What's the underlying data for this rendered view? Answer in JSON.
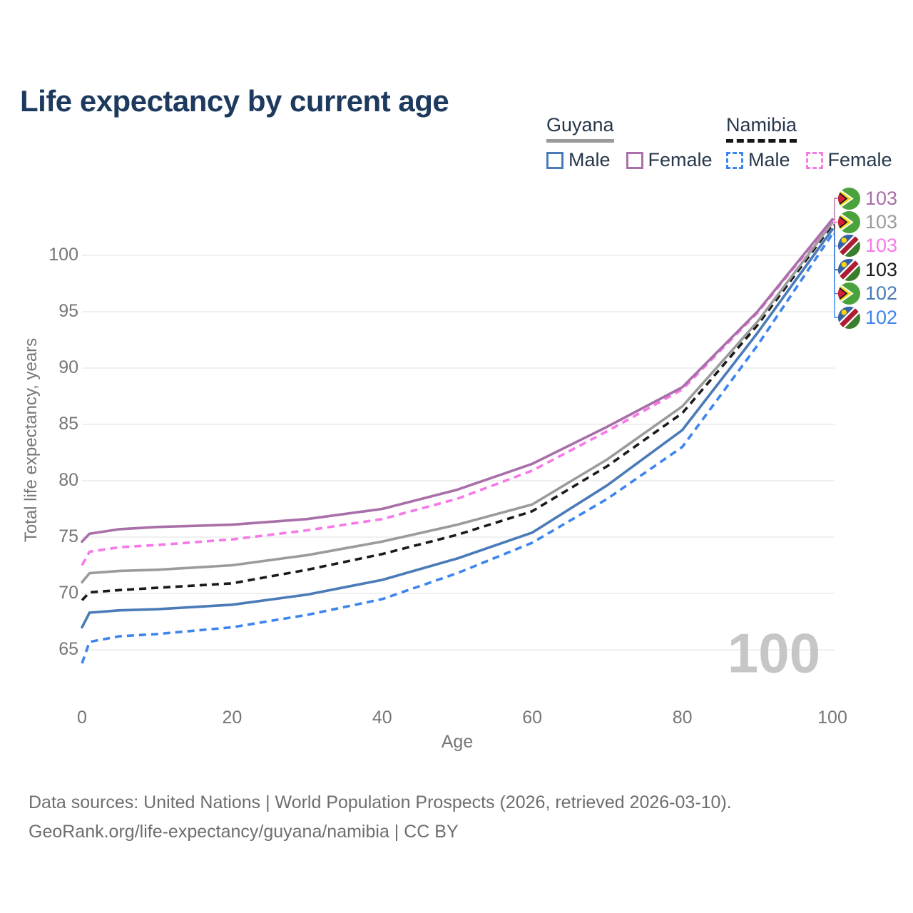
{
  "title": "Life expectancy by current age",
  "legend": {
    "groups": [
      {
        "country": "Guyana",
        "underline": "solid",
        "items": [
          {
            "label": "Male",
            "color": "#4a7bb8",
            "dashed": false
          },
          {
            "label": "Female",
            "color": "#a86fa8",
            "dashed": false
          }
        ]
      },
      {
        "country": "Namibia",
        "underline": "dashed",
        "items": [
          {
            "label": "Male",
            "color": "#3d85ee",
            "dashed": true
          },
          {
            "label": "Female",
            "color": "#f878e8",
            "dashed": true
          }
        ]
      }
    ]
  },
  "watermark": "100",
  "end_labels": [
    {
      "series": "Guyana Female",
      "country": "guyana",
      "value": "103",
      "color": "#a86fa8"
    },
    {
      "series": "Guyana",
      "country": "guyana",
      "value": "103",
      "color": "#9b9b9b"
    },
    {
      "series": "Namibia Female",
      "country": "namibia",
      "value": "103",
      "color": "#f878e8"
    },
    {
      "series": "Namibia",
      "country": "namibia",
      "value": "103",
      "color": "#1a1a1a"
    },
    {
      "series": "Guyana Male",
      "country": "guyana",
      "value": "102",
      "color": "#4a7bb8"
    },
    {
      "series": "Namibia Male",
      "country": "namibia",
      "value": "102",
      "color": "#3d85ee"
    }
  ],
  "footer": {
    "line1": "Data sources: United Nations | World Population Prospects (2026, retrieved 2026-03-10).",
    "line2": "GeoRank.org/life-expectancy/guyana/namibia | CC BY"
  },
  "chart_data": {
    "type": "line",
    "title": "Life expectancy by current age",
    "xlabel": "Age",
    "ylabel": "Total life expectancy, years",
    "xlim": [
      0,
      100
    ],
    "ylim": [
      63,
      104
    ],
    "x_ticks": [
      0,
      20,
      40,
      60,
      80,
      100
    ],
    "y_ticks": [
      65,
      70,
      75,
      80,
      85,
      90,
      95,
      100
    ],
    "grid": "horizontal",
    "legend_position": "top-right",
    "x": [
      0,
      1,
      5,
      10,
      20,
      30,
      40,
      50,
      60,
      70,
      80,
      90,
      100
    ],
    "series": [
      {
        "name": "Guyana Female",
        "color": "#a86fa8",
        "dashed": false,
        "values": [
          74.6,
          75.3,
          75.7,
          75.9,
          76.1,
          76.6,
          77.5,
          79.2,
          81.5,
          84.8,
          88.3,
          95.0,
          103.2
        ]
      },
      {
        "name": "Namibia Female",
        "color": "#f878e8",
        "dashed": true,
        "values": [
          72.5,
          73.7,
          74.1,
          74.3,
          74.8,
          75.6,
          76.6,
          78.4,
          80.9,
          84.4,
          88.1,
          94.9,
          103.1
        ]
      },
      {
        "name": "Guyana",
        "color": "#9b9b9b",
        "dashed": false,
        "values": [
          71.0,
          71.8,
          72.0,
          72.1,
          72.5,
          73.4,
          74.6,
          76.1,
          77.9,
          81.9,
          86.6,
          94.1,
          102.9
        ]
      },
      {
        "name": "Namibia",
        "color": "#1a1a1a",
        "dashed": true,
        "values": [
          69.4,
          70.1,
          70.3,
          70.5,
          70.9,
          72.1,
          73.5,
          75.2,
          77.3,
          81.3,
          86.0,
          93.8,
          102.7
        ]
      },
      {
        "name": "Guyana Male",
        "color": "#4a7bb8",
        "dashed": false,
        "values": [
          67.0,
          68.3,
          68.5,
          68.6,
          69.0,
          69.9,
          71.2,
          73.1,
          75.4,
          79.6,
          84.5,
          93.1,
          102.3
        ]
      },
      {
        "name": "Namibia Male",
        "color": "#3d85ee",
        "dashed": true,
        "values": [
          63.8,
          65.7,
          66.2,
          66.4,
          67.0,
          68.1,
          69.5,
          71.8,
          74.5,
          78.4,
          83.0,
          92.0,
          101.9
        ]
      }
    ]
  }
}
